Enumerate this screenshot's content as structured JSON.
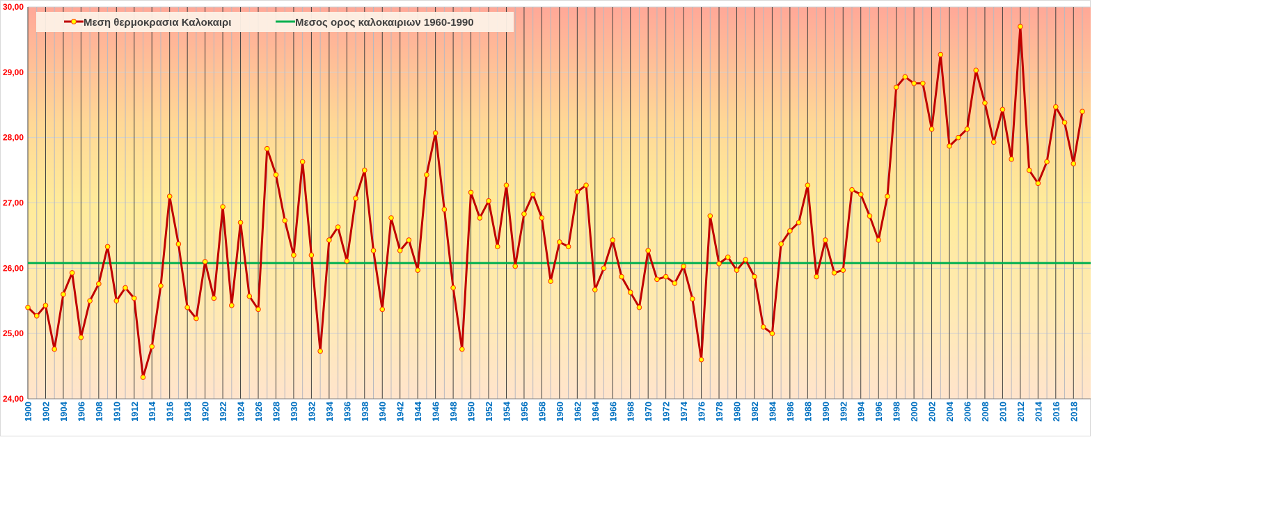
{
  "chart_data": {
    "type": "line",
    "title": "",
    "xlabel": "",
    "ylabel": "",
    "ylim": [
      24,
      30
    ],
    "yticks": [
      "24,00",
      "25,00",
      "26,00",
      "27,00",
      "28,00",
      "29,00",
      "30,00"
    ],
    "x_start": 1900,
    "x_end": 2019,
    "xtick_step": 2,
    "grid": true,
    "legend_position": "top-left",
    "series": [
      {
        "name": "Μεση θερμοκρασια  Καλοκαιρι",
        "color": "#c00000",
        "marker_color": "#ffff00",
        "values": [
          25.4,
          25.27,
          25.43,
          24.76,
          25.6,
          25.93,
          24.94,
          25.5,
          25.76,
          26.33,
          25.5,
          25.7,
          25.54,
          24.33,
          24.8,
          25.73,
          27.1,
          26.37,
          25.4,
          25.23,
          26.1,
          25.54,
          26.94,
          25.43,
          26.7,
          25.57,
          25.37,
          27.83,
          27.43,
          26.73,
          26.2,
          27.63,
          26.2,
          24.73,
          26.43,
          26.63,
          26.11,
          27.07,
          27.5,
          26.27,
          25.37,
          26.77,
          26.27,
          26.43,
          25.97,
          27.43,
          28.07,
          26.9,
          25.7,
          24.76,
          27.16,
          26.77,
          27.03,
          26.33,
          27.27,
          26.03,
          26.83,
          27.13,
          26.77,
          25.8,
          26.4,
          26.33,
          27.17,
          27.27,
          25.67,
          26.0,
          26.43,
          25.87,
          25.63,
          25.4,
          26.27,
          25.83,
          25.87,
          25.77,
          26.03,
          25.53,
          24.6,
          26.8,
          26.07,
          26.17,
          25.97,
          26.13,
          25.87,
          25.1,
          25.0,
          26.37,
          26.57,
          26.7,
          27.27,
          25.87,
          26.43,
          25.93,
          25.97,
          27.2,
          27.13,
          26.8,
          26.43,
          27.1,
          28.77,
          28.93,
          28.83,
          28.83,
          28.13,
          29.27,
          27.87,
          28.0,
          28.13,
          29.03,
          28.53,
          27.93,
          28.43,
          27.67,
          29.7,
          27.5,
          27.3,
          27.63,
          28.47,
          28.23,
          27.6,
          28.4
        ]
      },
      {
        "name": "Μεσος ορος καλοκαιριων  1960-1990",
        "color": "#00b050",
        "constant": 26.08
      }
    ]
  }
}
